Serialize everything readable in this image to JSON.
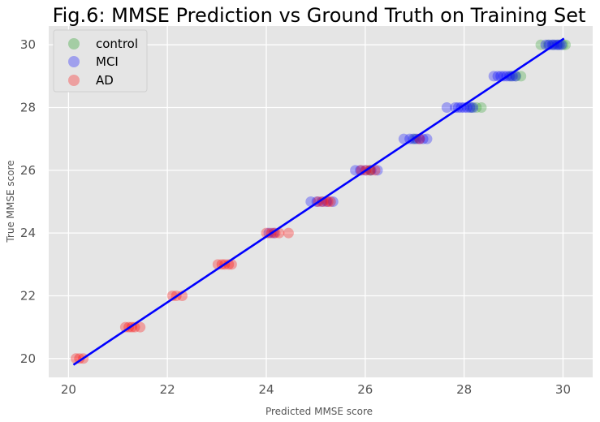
{
  "chart_data": {
    "type": "scatter",
    "title": "Fig.6: MMSE Prediction vs Ground Truth on Training Set",
    "xlabel": "Predicted MMSE score",
    "ylabel": "True MMSE score",
    "xlim": [
      19.6,
      30.6
    ],
    "ylim": [
      19.4,
      30.6
    ],
    "xticks": [
      20,
      22,
      24,
      26,
      28,
      30
    ],
    "yticks": [
      20,
      22,
      24,
      26,
      28,
      30
    ],
    "grid": true,
    "legend_position": "top-left",
    "series": [
      {
        "name": "control",
        "color": "#2ca02c",
        "points": [
          [
            29.55,
            30
          ],
          [
            29.7,
            30
          ],
          [
            29.8,
            30
          ],
          [
            29.9,
            30
          ],
          [
            30.0,
            30
          ],
          [
            30.05,
            30
          ],
          [
            28.95,
            29
          ],
          [
            29.05,
            29
          ],
          [
            29.15,
            29
          ],
          [
            28.15,
            28
          ],
          [
            28.25,
            28
          ],
          [
            28.35,
            28
          ],
          [
            27.0,
            27
          ],
          [
            26.1,
            26
          ]
        ]
      },
      {
        "name": "MCI",
        "color": "#0000ff",
        "points": [
          [
            29.65,
            30
          ],
          [
            29.72,
            30
          ],
          [
            29.78,
            30
          ],
          [
            29.83,
            30
          ],
          [
            29.88,
            30
          ],
          [
            29.93,
            30
          ],
          [
            29.97,
            30
          ],
          [
            28.6,
            29
          ],
          [
            28.68,
            29
          ],
          [
            28.74,
            29
          ],
          [
            28.8,
            29
          ],
          [
            28.86,
            29
          ],
          [
            28.92,
            29
          ],
          [
            28.98,
            29
          ],
          [
            29.04,
            29
          ],
          [
            27.65,
            28
          ],
          [
            27.82,
            28
          ],
          [
            27.88,
            28
          ],
          [
            27.94,
            28
          ],
          [
            28.0,
            28
          ],
          [
            28.06,
            28
          ],
          [
            28.12,
            28
          ],
          [
            28.18,
            28
          ],
          [
            26.78,
            27
          ],
          [
            26.9,
            27
          ],
          [
            26.97,
            27
          ],
          [
            27.04,
            27
          ],
          [
            27.1,
            27
          ],
          [
            27.17,
            27
          ],
          [
            27.25,
            27
          ],
          [
            25.8,
            26
          ],
          [
            25.9,
            26
          ],
          [
            26.0,
            26
          ],
          [
            26.12,
            26
          ],
          [
            26.25,
            26
          ],
          [
            24.9,
            25
          ],
          [
            25.02,
            25
          ],
          [
            25.12,
            25
          ],
          [
            25.22,
            25
          ],
          [
            25.35,
            25
          ],
          [
            24.05,
            24
          ],
          [
            24.15,
            24
          ]
        ]
      },
      {
        "name": "AD",
        "color": "#ff0000",
        "points": [
          [
            20.15,
            20
          ],
          [
            20.22,
            20
          ],
          [
            20.3,
            20
          ],
          [
            21.15,
            21
          ],
          [
            21.22,
            21
          ],
          [
            21.28,
            21
          ],
          [
            21.34,
            21
          ],
          [
            21.45,
            21
          ],
          [
            22.1,
            22
          ],
          [
            22.18,
            22
          ],
          [
            22.3,
            22
          ],
          [
            23.02,
            23
          ],
          [
            23.1,
            23
          ],
          [
            23.16,
            23
          ],
          [
            23.24,
            23
          ],
          [
            23.3,
            23
          ],
          [
            24.0,
            24
          ],
          [
            24.1,
            24
          ],
          [
            24.18,
            24
          ],
          [
            24.26,
            24
          ],
          [
            24.45,
            24
          ],
          [
            25.05,
            25
          ],
          [
            25.15,
            25
          ],
          [
            25.25,
            25
          ],
          [
            25.3,
            25
          ],
          [
            25.92,
            26
          ],
          [
            26.02,
            26
          ],
          [
            26.1,
            26
          ],
          [
            26.2,
            26
          ],
          [
            27.1,
            27
          ]
        ]
      }
    ],
    "fit_line": {
      "color": "#0000ff",
      "points": [
        [
          20.1,
          19.8
        ],
        [
          30.02,
          30.2
        ]
      ]
    }
  }
}
